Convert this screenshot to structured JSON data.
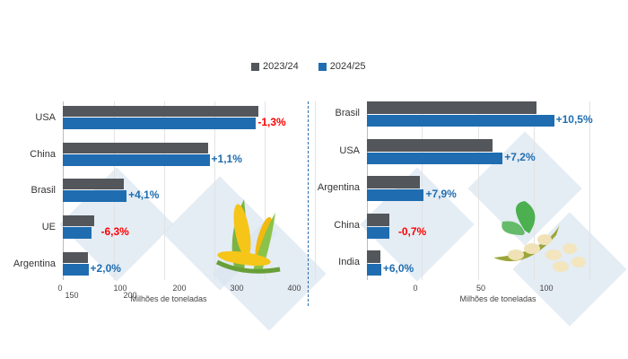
{
  "colors": {
    "series_2023": "#53565a",
    "series_2024": "#1f6db0",
    "positive": "#1f6db0",
    "negative": "#ff0000",
    "divider": "#2b6cb0",
    "watermark": "#dbe6f0"
  },
  "legend": [
    "2023/24",
    "2024/25"
  ],
  "chart_data": [
    {
      "type": "bar",
      "orientation": "horizontal",
      "topic": "corn",
      "categories": [
        "USA",
        "China",
        "Brasil",
        "UE",
        "Argentina"
      ],
      "series": [
        {
          "name": "2023/24",
          "values": [
            389.7,
            288.8,
            122,
            62,
            50
          ]
        },
        {
          "name": "2024/25",
          "values": [
            384.6,
            292,
            127,
            58,
            51
          ]
        }
      ],
      "change_labels": [
        "-1,3%",
        "+1,1%",
        "+4,1%",
        "-6,3%",
        "+2,0%"
      ],
      "tick_labels": [
        "0",
        "100",
        "200",
        "300",
        "400",
        "150",
        "200"
      ],
      "xlabel": "Milhões de toneladas",
      "xlim": [
        0,
        400
      ],
      "grid": true
    },
    {
      "type": "bar",
      "orientation": "horizontal",
      "topic": "soybean",
      "categories": [
        "Brasil",
        "USA",
        "Argentina",
        "China",
        "India"
      ],
      "series": [
        {
          "name": "2023/24",
          "values": [
            155,
            115,
            48,
            20.5,
            12.3
          ]
        },
        {
          "name": "2024/25",
          "values": [
            171,
            124,
            52,
            20.4,
            13
          ]
        }
      ],
      "change_labels": [
        "+10,5%",
        "+7,2%",
        "+7,9%",
        "-0,7%",
        "+6,0%"
      ],
      "tick_labels": [
        "0",
        "50",
        "100"
      ],
      "xlabel": "Milhões de toneladas",
      "xlim": [
        0,
        200
      ],
      "grid": true
    }
  ]
}
